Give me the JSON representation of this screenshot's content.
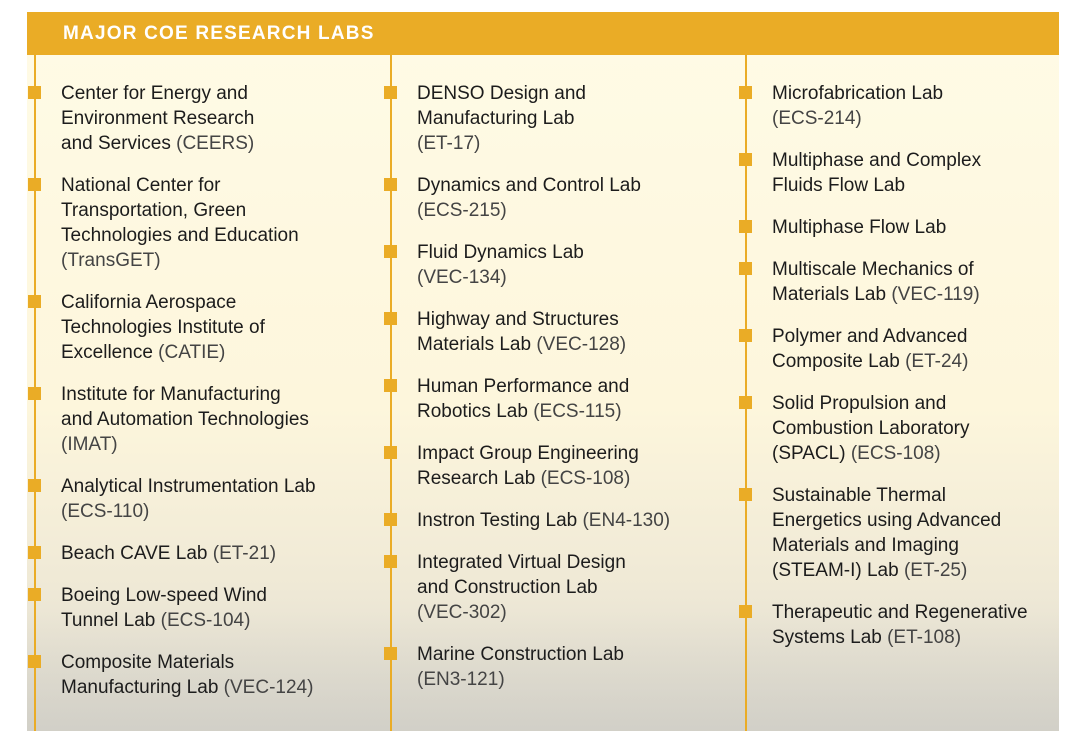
{
  "header": {
    "title": "MAJOR COE RESEARCH LABS"
  },
  "colors": {
    "accent": "#eaac26",
    "text": "#1c1c1c",
    "background": "#fffbe6"
  },
  "columns": [
    [
      {
        "name": "Center for Energy and\nEnvironment Research\nand Services",
        "code": "(CEERS)"
      },
      {
        "name": "National Center for\nTransportation, Green\nTechnologies and Education\n",
        "code": "(TransGET)"
      },
      {
        "name": "California Aerospace\nTechnologies Institute of\nExcellence",
        "code": "(CATIE)"
      },
      {
        "name": "Institute for Manufacturing\nand Automation Technologies\n",
        "code": "(IMAT)"
      },
      {
        "name": "Analytical Instrumentation Lab\n",
        "code": "(ECS-110)"
      },
      {
        "name": "Beach CAVE Lab",
        "code": "(ET-21)"
      },
      {
        "name": "Boeing Low-speed Wind\nTunnel Lab",
        "code": "(ECS-104)"
      },
      {
        "name": "Composite Materials\nManufacturing Lab",
        "code": "(VEC-124)"
      }
    ],
    [
      {
        "name": "DENSO Design and\nManufacturing Lab\n",
        "code": "(ET-17)"
      },
      {
        "name": "Dynamics and Control Lab\n",
        "code": "(ECS-215)"
      },
      {
        "name": "Fluid Dynamics Lab\n",
        "code": "(VEC-134)"
      },
      {
        "name": "Highway and Structures\nMaterials Lab",
        "code": "(VEC-128)"
      },
      {
        "name": "Human Performance and\nRobotics Lab",
        "code": "(ECS-115)"
      },
      {
        "name": "Impact Group Engineering\nResearch Lab",
        "code": "(ECS-108)"
      },
      {
        "name": "Instron Testing Lab",
        "code": "(EN4-130)"
      },
      {
        "name": "Integrated Virtual Design\nand Construction Lab\n",
        "code": "(VEC-302)"
      },
      {
        "name": "Marine Construction Lab\n",
        "code": "(EN3-121)"
      }
    ],
    [
      {
        "name": "Microfabrication Lab\n",
        "code": "(ECS-214)"
      },
      {
        "name": "Multiphase and Complex\nFluids Flow Lab",
        "code": ""
      },
      {
        "name": "Multiphase Flow Lab",
        "code": ""
      },
      {
        "name": "Multiscale Mechanics of\nMaterials Lab",
        "code": "(VEC-119)"
      },
      {
        "name": "Polymer and Advanced\nComposite Lab",
        "code": "(ET-24)"
      },
      {
        "name": "Solid Propulsion and\nCombustion Laboratory\n(SPACL)",
        "code": "(ECS-108)"
      },
      {
        "name": "Sustainable Thermal\nEnergetics using Advanced\nMaterials and Imaging\n(STEAM-I) Lab",
        "code": "(ET-25)"
      },
      {
        "name": "Therapeutic and Regenerative\nSystems Lab",
        "code": "(ET-108)"
      }
    ]
  ]
}
